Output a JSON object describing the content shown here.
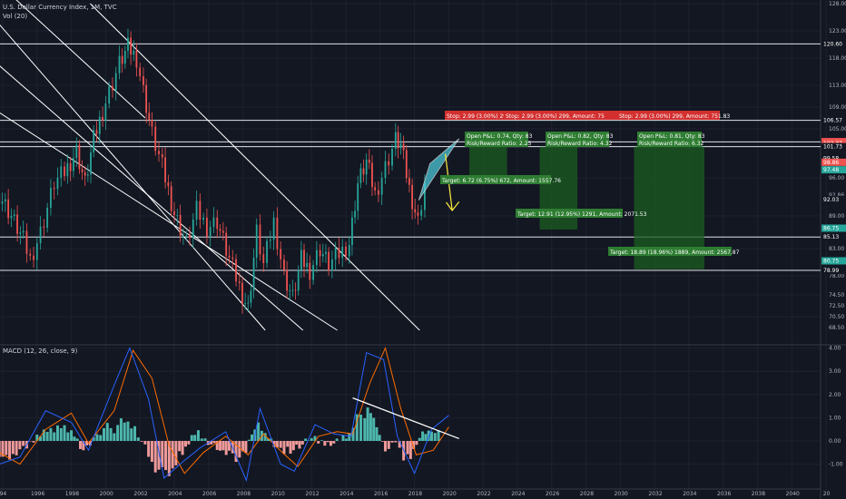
{
  "header": {
    "title": "U.S. Dollar Currency Index, 1M, TVC",
    "indicator": "Vol (20)",
    "macd_label": "MACD (12, 26, close, 9)"
  },
  "colors": {
    "background": "#131722",
    "up": "#26a69a",
    "down": "#ef5350",
    "teal_hist": "#4db6ac",
    "red_hist": "#ef9a9a",
    "macd_line": "#2962ff",
    "signal_line": "#ff6d00",
    "wedge_fill": "#4dd0e1",
    "target_box": "#1b5e20",
    "stop_box": "#d32f2f"
  },
  "chart_data": [
    {
      "type": "line",
      "title": "U.S. Dollar Currency Index, 1M, TVC",
      "x_ticks": [
        "94",
        "1996",
        "1998",
        "2000",
        "2002",
        "2004",
        "2006",
        "2008",
        "2010",
        "2012",
        "2014",
        "2016",
        "2018",
        "2020",
        "2022",
        "2024",
        "2026",
        "2028",
        "2030",
        "2032",
        "2034",
        "2036",
        "2038",
        "2040",
        "20"
      ],
      "ylim": [
        67.0,
        128.0
      ],
      "y_ticks": [
        "128.00",
        "123.00",
        "118.00",
        "113.00",
        "109.00",
        "105.00",
        "96.00",
        "92.86",
        "89.00",
        "86.75",
        "83.00",
        "80.75",
        "78.00",
        "74.50",
        "72.50",
        "70.50",
        "68.50"
      ],
      "price_labels": [
        {
          "text": "120.60",
          "value": 120.6,
          "color": "#131722",
          "line": true
        },
        {
          "text": "106.57",
          "value": 106.57,
          "color": "#131722",
          "line": true
        },
        {
          "text": "102.65",
          "value": 102.65,
          "color": "#ef5350",
          "line": false
        },
        {
          "text": "102.61",
          "value": 102.61,
          "color": "#ef5350",
          "line": true
        },
        {
          "text": "102.37",
          "value": 102.37,
          "color": "#ef5350",
          "line": false
        },
        {
          "text": "101.73",
          "value": 101.73,
          "color": "#131722",
          "line": true
        },
        {
          "text": "99.66",
          "value": 99.66,
          "color": "#131722",
          "line": false
        },
        {
          "text": "99.64",
          "value": 99.64,
          "color": "#131722",
          "line": false
        },
        {
          "text": "99.58",
          "value": 99.58,
          "color": "#131722",
          "line": false
        },
        {
          "text": "98.86",
          "value": 98.86,
          "color": "#ef5350",
          "line": false
        },
        {
          "text": "97.48",
          "value": 97.48,
          "color": "#26a69a",
          "line": false
        },
        {
          "text": "92.03",
          "value": 92.03,
          "color": "#131722",
          "line": false
        },
        {
          "text": "86.75",
          "value": 86.75,
          "color": "#26a69a",
          "line": false
        },
        {
          "text": "85.13",
          "value": 85.13,
          "color": "#131722",
          "line": true
        },
        {
          "text": "80.75",
          "value": 80.75,
          "color": "#26a69a",
          "line": false
        },
        {
          "text": "78.99",
          "value": 78.99,
          "color": "#131722",
          "line": true
        }
      ],
      "series": [
        {
          "x": [
            1993.8,
            1994.5,
            1995.2,
            1995.6,
            1996.2,
            1997,
            1997.6,
            1998.3,
            1998.8,
            1999.3,
            2000,
            2000.8,
            2001.3,
            2001.8,
            2002.2,
            2002.7,
            2003.3,
            2004,
            2004.7,
            2005.3,
            2005.9,
            2006.5,
            2007.2,
            2007.8,
            2008.3,
            2008.8,
            2009.2,
            2009.8,
            2010.4,
            2010.9,
            2011.4,
            2011.9,
            2012.5,
            2013,
            2013.6,
            2014.2,
            2014.7,
            2015.2,
            2015.7,
            2016.3,
            2016.9,
            2017.2,
            2017.7,
            2018.2,
            2018.6
          ],
          "close": [
            93,
            89,
            84.5,
            81,
            86,
            95,
            97,
            101,
            95,
            103,
            110,
            117,
            120,
            118,
            112,
            104,
            98,
            89.5,
            84,
            90,
            87,
            88,
            81,
            76,
            72,
            86,
            80,
            88,
            78,
            74,
            81,
            79,
            83,
            80,
            82,
            84,
            95,
            99,
            93,
            98,
            103,
            102,
            94,
            88,
            95
          ]
        }
      ],
      "channel_lines_from_to": [
        {
          "x1": 1993.3,
          "y1": 133,
          "x2": 2002.3,
          "y2": 107
        },
        {
          "x1": 1993.3,
          "y1": 126,
          "x2": 2009.3,
          "y2": 68
        },
        {
          "x1": 1993.3,
          "y1": 118,
          "x2": 2011.5,
          "y2": 68
        },
        {
          "x1": 1993.3,
          "y1": 109,
          "x2": 2013.5,
          "y2": 68
        },
        {
          "x1": 1999.1,
          "y1": 128,
          "x2": 2018.3,
          "y2": 68
        }
      ],
      "trades": {
        "stops": [
          "Stop: 2.99 (3.00%) 299, Amount: 51",
          "Stop: 2.99 (3.00%) 299, Amount: 75",
          "Stop: 2.99 (3.00%) 299, Amount: 751.83"
        ],
        "open_pl": [
          [
            "Open P&L: 0.74, Qty: 83",
            "Risk/Reward Ratio: 2.25"
          ],
          [
            "Open P&L: 0.82, Qty: 83",
            "Risk/Reward Ratio: 4.32"
          ],
          [
            "Open P&L: 0.81, Qty: 83",
            "Risk/Reward Ratio: 6.32"
          ]
        ],
        "targets": [
          "Target: 6.72 (6.75%) 672, Amount: 1557.76",
          "Target: 12.91 (12.95%) 1291, Amount: 2071.53",
          "Target: 18.89 (18.96%) 1889, Amount: 2567.87"
        ]
      }
    },
    {
      "type": "bar",
      "title": "MACD (12, 26, close, 9)",
      "ylim": [
        -1.7,
        4.2
      ],
      "y_ticks": [
        "4.00",
        "3.00",
        "2.00",
        "1.00",
        "0.00",
        "-1.00"
      ],
      "histogram_pts": [
        [
          1993.8,
          -0.9
        ],
        [
          1995,
          -0.6
        ],
        [
          1996,
          0.2
        ],
        [
          1997,
          0.7
        ],
        [
          1998,
          0.6
        ],
        [
          1998.7,
          -0.5
        ],
        [
          1999.5,
          0.4
        ],
        [
          2000.5,
          0.8
        ],
        [
          2001.5,
          0.9
        ],
        [
          2002.3,
          -0.5
        ],
        [
          2003.3,
          -1.8
        ],
        [
          2004.3,
          -0.9
        ],
        [
          2005.2,
          0.6
        ],
        [
          2005.8,
          0.1
        ],
        [
          2006.5,
          -0.4
        ],
        [
          2007.2,
          -0.7
        ],
        [
          2008,
          -1.0
        ],
        [
          2008.7,
          0.9
        ],
        [
          2009.3,
          0.4
        ],
        [
          2010,
          -0.3
        ],
        [
          2010.6,
          -0.5
        ],
        [
          2011.3,
          -0.3
        ],
        [
          2012,
          0.2
        ],
        [
          2012.6,
          -0.2
        ],
        [
          2013.3,
          -0.1
        ],
        [
          2014.2,
          0.4
        ],
        [
          2015.1,
          1.8
        ],
        [
          2015.8,
          0.9
        ],
        [
          2016.3,
          -0.5
        ],
        [
          2016.9,
          -0.1
        ],
        [
          2017.6,
          -1.2
        ],
        [
          2018.3,
          0.3
        ],
        [
          2019,
          0.5
        ],
        [
          2019.6,
          0.4
        ]
      ],
      "macd_pts": [
        [
          1993.8,
          -1.0
        ],
        [
          1995,
          -0.7
        ],
        [
          1996.5,
          1.3
        ],
        [
          1998,
          0.8
        ],
        [
          1999,
          -0.4
        ],
        [
          2000.5,
          2.4
        ],
        [
          2001.4,
          4.0
        ],
        [
          2002.5,
          1.8
        ],
        [
          2003.4,
          -1.6
        ],
        [
          2004.5,
          -0.9
        ],
        [
          2005.5,
          -0.3
        ],
        [
          2007,
          0.4
        ],
        [
          2008.2,
          -1.7
        ],
        [
          2009,
          1.4
        ],
        [
          2010.2,
          -1.0
        ],
        [
          2011,
          -1.3
        ],
        [
          2012.2,
          0.7
        ],
        [
          2013.3,
          0.3
        ],
        [
          2014.3,
          0.2
        ],
        [
          2015.2,
          3.8
        ],
        [
          2016.2,
          3.5
        ],
        [
          2017,
          0.2
        ],
        [
          2018,
          -1.4
        ],
        [
          2019,
          0.5
        ],
        [
          2020,
          1.1
        ]
      ],
      "signal_pts": [
        [
          1993.8,
          -0.5
        ],
        [
          1995,
          -1.0
        ],
        [
          1996.5,
          0.5
        ],
        [
          1998,
          1.2
        ],
        [
          1999,
          -0.1
        ],
        [
          2000.5,
          1.3
        ],
        [
          2001.6,
          3.9
        ],
        [
          2002.7,
          2.7
        ],
        [
          2003.7,
          -0.2
        ],
        [
          2004.6,
          -1.4
        ],
        [
          2005.7,
          -0.5
        ],
        [
          2007,
          0.2
        ],
        [
          2008.3,
          -0.6
        ],
        [
          2009.2,
          0.3
        ],
        [
          2010.3,
          -0.5
        ],
        [
          2011.2,
          -1.1
        ],
        [
          2012.4,
          0.2
        ],
        [
          2013.5,
          0.4
        ],
        [
          2014.4,
          0.3
        ],
        [
          2015.4,
          2.5
        ],
        [
          2016.3,
          4.0
        ],
        [
          2017.2,
          1.4
        ],
        [
          2018.1,
          -0.6
        ],
        [
          2019.1,
          -0.4
        ],
        [
          2020,
          0.6
        ]
      ],
      "trendline": {
        "x1": 2014.4,
        "y1": 1.85,
        "x2": 2020.6,
        "y2": 0.1
      }
    }
  ]
}
